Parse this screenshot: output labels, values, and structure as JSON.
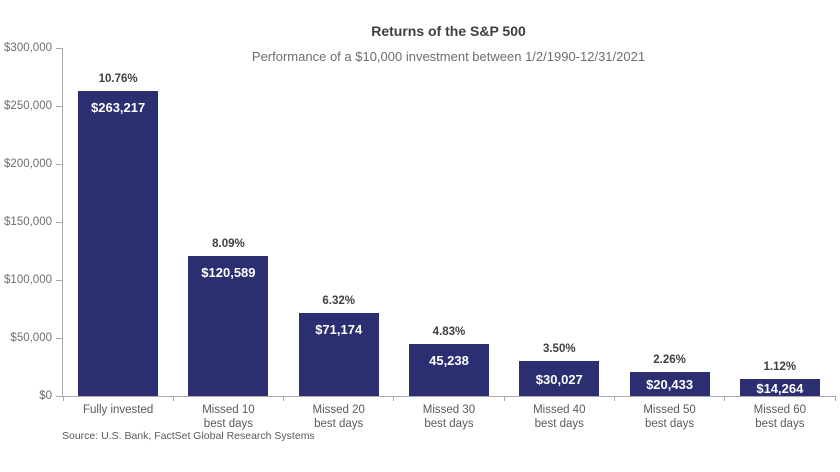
{
  "colors": {
    "bar": "#2b2e70",
    "axis": "#a9a9a9",
    "title_text": "#3f3f3f",
    "label_text": "#5a5a5a",
    "value_text": "#ffffff"
  },
  "chart_data": {
    "type": "bar",
    "title": "Returns of the S&P 500",
    "subtitle": "Performance of a $10,000 investment between 1/2/1990-12/31/2021",
    "source": "Source: U.S. Bank, FactSet Global Research Systems",
    "categories": [
      "Fully invested",
      "Missed 10 best days",
      "Missed 20 best days",
      "Missed 30 best days",
      "Missed 40 best days",
      "Missed 50 best days",
      "Missed 60 best days"
    ],
    "category_label_lines": [
      [
        "Fully invested"
      ],
      [
        "Missed 10",
        "best days"
      ],
      [
        "Missed 20",
        "best days"
      ],
      [
        "Missed 30",
        "best days"
      ],
      [
        "Missed 40",
        "best days"
      ],
      [
        "Missed 50",
        "best days"
      ],
      [
        "Missed 60",
        "best days"
      ]
    ],
    "values": [
      263217,
      120589,
      71174,
      45238,
      30027,
      20433,
      14264
    ],
    "value_labels": [
      "$263,217",
      "$120,589",
      "$71,174",
      "45,238",
      "$30,027",
      "$20,433",
      "$14,264"
    ],
    "return_labels": [
      "10.76%",
      "8.09%",
      "6.32%",
      "4.83%",
      "3.50%",
      "2.26%",
      "1.12%"
    ],
    "returns_pct": [
      10.76,
      8.09,
      6.32,
      4.83,
      3.5,
      2.26,
      1.12
    ],
    "yticks": [
      {
        "value": 0,
        "label": "$0"
      },
      {
        "value": 50000,
        "label": "$50,000"
      },
      {
        "value": 100000,
        "label": "$100,000"
      },
      {
        "value": 150000,
        "label": "$150,000"
      },
      {
        "value": 200000,
        "label": "$200,000"
      },
      {
        "value": 250000,
        "label": "$250,000"
      },
      {
        "value": 300000,
        "label": "$300,000"
      }
    ],
    "ylim": [
      0,
      300000
    ],
    "xlabel": "",
    "ylabel": "",
    "grid": false,
    "legend": "none"
  }
}
